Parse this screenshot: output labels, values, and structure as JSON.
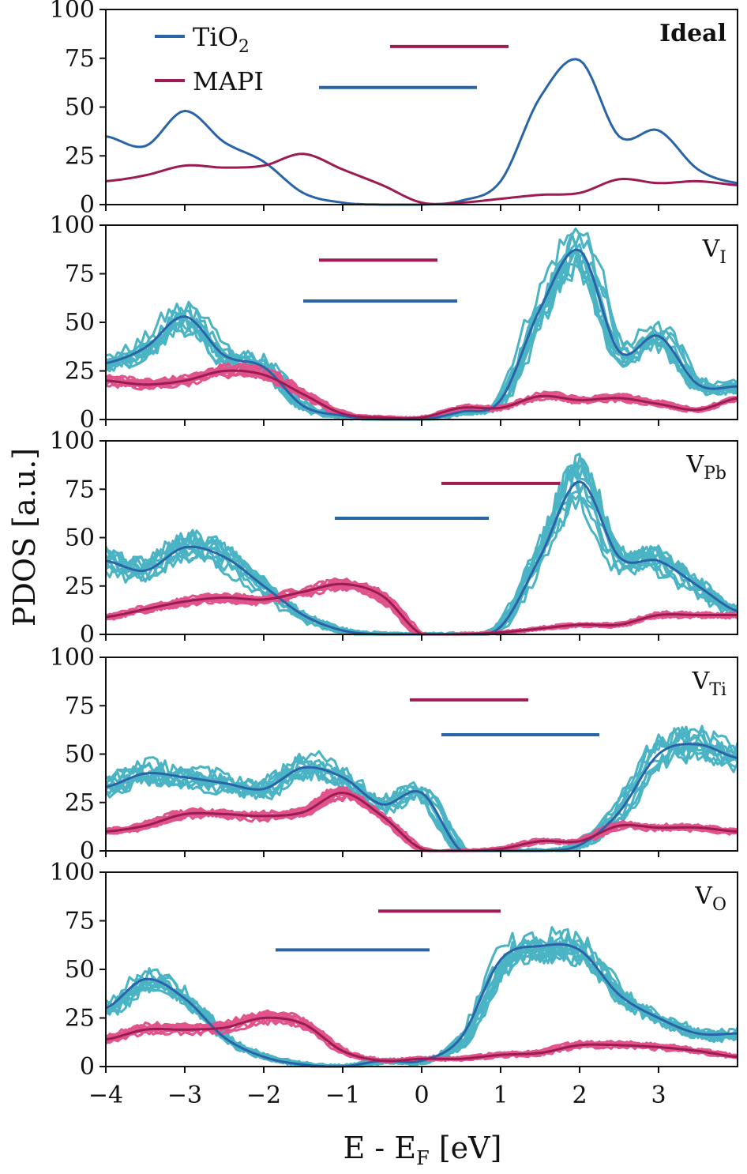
{
  "chart_data": {
    "type": "line",
    "title": "",
    "xlabel": "E - E",
    "xlabel_sub": "F",
    "xlabel_unit": " [eV]",
    "ylabel": "PDOS [a.u.]",
    "xlim": [
      -4,
      4
    ],
    "ylim": [
      0,
      100
    ],
    "xticks": [
      "−4",
      "−3",
      "−2",
      "−1",
      "0",
      "1",
      "2",
      "3"
    ],
    "xtick_values": [
      -4,
      -3,
      -2,
      -1,
      0,
      1,
      2,
      3
    ],
    "yticks": [
      "0",
      "25",
      "50",
      "75",
      "100"
    ],
    "ytick_values": [
      0,
      25,
      50,
      75,
      100
    ],
    "legend": {
      "position": "top-left",
      "entries": [
        {
          "name": "TiO",
          "sub": "2",
          "color": "#2a64a8"
        },
        {
          "name": "MAPI",
          "sub": "",
          "color": "#9b1b52"
        }
      ]
    },
    "colors": {
      "tio2": "#2a64a8",
      "mapi": "#9b1b52",
      "tio2_samples": "#4ab3c4",
      "mapi_samples": "#e0548b"
    },
    "x": [
      -4.0,
      -3.5,
      -3.0,
      -2.5,
      -2.0,
      -1.5,
      -1.0,
      -0.5,
      0.0,
      0.5,
      1.0,
      1.5,
      2.0,
      2.5,
      3.0,
      3.5,
      4.0
    ],
    "panels": [
      {
        "label": "Ideal",
        "label_sub": "",
        "sample_count": 0,
        "series": [
          {
            "name": "TiO2",
            "values": [
              35,
              30,
              48,
              32,
              22,
              6,
              1,
              0,
              0,
              2,
              12,
              55,
              74,
              35,
              38,
              18,
              11
            ]
          },
          {
            "name": "MAPI",
            "values": [
              12,
              15,
              20,
              19,
              20,
              26,
              18,
              10,
              1,
              1,
              3,
              5,
              6,
              13,
              11,
              12,
              10
            ]
          }
        ],
        "bands": {
          "mapi": {
            "x": [
              -0.4,
              1.1
            ],
            "y": 81
          },
          "tio2": {
            "x": [
              -1.3,
              0.7
            ],
            "y": 60
          }
        }
      },
      {
        "label": "V",
        "label_sub": "I",
        "sample_count": 10,
        "series": [
          {
            "name": "TiO2",
            "values": [
              29,
              37,
              53,
              33,
              27,
              7,
              2,
              0,
              0,
              4,
              10,
              57,
              87,
              35,
              43,
              18,
              17
            ]
          },
          {
            "name": "MAPI",
            "values": [
              20,
              18,
              20,
              25,
              23,
              13,
              3,
              1,
              1,
              6,
              6,
              12,
              10,
              11,
              8,
              5,
              11
            ]
          }
        ],
        "bands": {
          "mapi": {
            "x": [
              -1.3,
              0.2
            ],
            "y": 82
          },
          "tio2": {
            "x": [
              -1.5,
              0.45
            ],
            "y": 61
          }
        }
      },
      {
        "label": "V",
        "label_sub": "Pb",
        "sample_count": 10,
        "series": [
          {
            "name": "TiO2",
            "values": [
              38,
              33,
              45,
              40,
              25,
              10,
              2,
              0,
              0,
              0,
              4,
              40,
              79,
              40,
              38,
              25,
              12
            ]
          },
          {
            "name": "MAPI",
            "values": [
              9,
              13,
              17,
              19,
              18,
              22,
              26,
              20,
              0,
              0,
              1,
              3,
              5,
              5,
              10,
              10,
              10
            ]
          }
        ],
        "bands": {
          "mapi": {
            "x": [
              0.25,
              1.75
            ],
            "y": 78
          },
          "tio2": {
            "x": [
              -1.1,
              0.85
            ],
            "y": 60
          }
        }
      },
      {
        "label": "V",
        "label_sub": "Ti",
        "sample_count": 10,
        "series": [
          {
            "name": "TiO2",
            "values": [
              33,
              40,
              38,
              35,
              32,
              43,
              38,
              24,
              30,
              0,
              0,
              0,
              3,
              20,
              50,
              55,
              48
            ]
          },
          {
            "name": "MAPI",
            "values": [
              10,
              13,
              19,
              19,
              18,
              20,
              30,
              18,
              1,
              0,
              1,
              5,
              5,
              13,
              12,
              12,
              10
            ]
          }
        ],
        "bands": {
          "mapi": {
            "x": [
              -0.15,
              1.35
            ],
            "y": 78
          },
          "tio2": {
            "x": [
              0.25,
              2.25
            ],
            "y": 60
          }
        }
      },
      {
        "label": "V",
        "label_sub": "O",
        "sample_count": 10,
        "series": [
          {
            "name": "TiO2",
            "values": [
              30,
              45,
              35,
              15,
              5,
              1,
              0,
              3,
              3,
              15,
              55,
              62,
              60,
              37,
              25,
              17,
              17
            ]
          },
          {
            "name": "MAPI",
            "values": [
              14,
              19,
              19,
              20,
              25,
              22,
              8,
              3,
              4,
              4,
              6,
              7,
              11,
              11,
              10,
              8,
              5
            ]
          }
        ],
        "bands": {
          "mapi": {
            "x": [
              -0.55,
              1.0
            ],
            "y": 80
          },
          "tio2": {
            "x": [
              -1.85,
              0.1
            ],
            "y": 60
          }
        }
      }
    ]
  }
}
